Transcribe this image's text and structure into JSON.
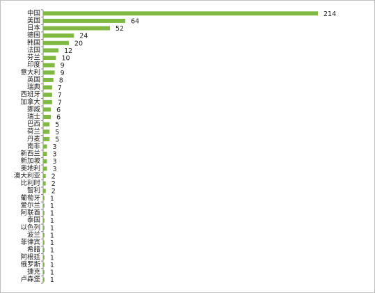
{
  "chart_data": {
    "type": "bar",
    "orientation": "horizontal",
    "color": "#7fb842",
    "categories": [
      "中国",
      "美国",
      "日本",
      "德国",
      "韩国",
      "法国",
      "芬兰",
      "印度",
      "意大利",
      "英国",
      "瑞典",
      "西班牙",
      "加拿大",
      "挪威",
      "瑞士",
      "巴西",
      "荷兰",
      "丹麦",
      "南非",
      "新西兰",
      "新加坡",
      "奥地利",
      "澳大利亚",
      "比利时",
      "智利",
      "葡萄牙",
      "爱尔兰",
      "阿联酋",
      "泰国",
      "以色列",
      "波兰",
      "菲律宾",
      "希腊",
      "阿根廷",
      "俄罗斯",
      "捷克",
      "卢森堡"
    ],
    "values": [
      214,
      64,
      52,
      24,
      20,
      12,
      10,
      9,
      9,
      8,
      7,
      7,
      7,
      6,
      6,
      5,
      5,
      5,
      3,
      3,
      3,
      3,
      2,
      2,
      2,
      1,
      1,
      1,
      1,
      1,
      1,
      1,
      1,
      1,
      1,
      1,
      1
    ]
  }
}
